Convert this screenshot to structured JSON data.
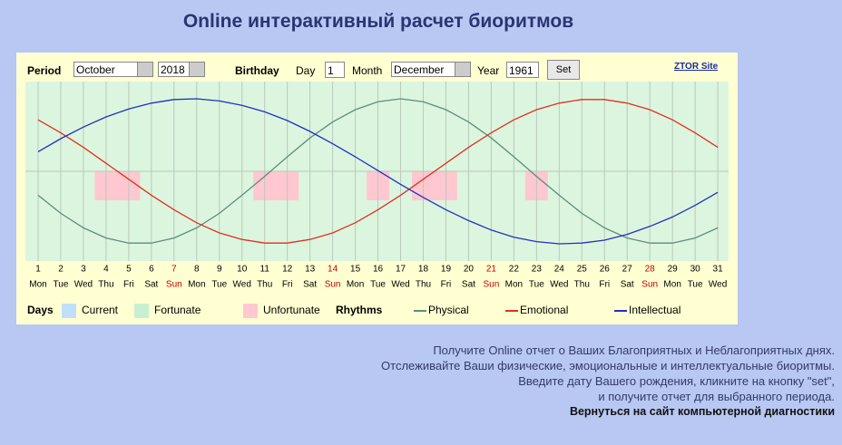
{
  "header": {
    "title": "Online интерактивный расчет биоритмов"
  },
  "form": {
    "period_label": "Period",
    "month": "October",
    "year": "2018",
    "birthday_label": "Birthday",
    "day_label": "Day",
    "day": "1",
    "month_label": "Month",
    "birth_month": "December",
    "year_label": "Year",
    "birth_year": "1961",
    "set_button": "Set",
    "site_link": "ZTOR Site"
  },
  "chart_data": {
    "type": "line",
    "x": [
      1,
      2,
      3,
      4,
      5,
      6,
      7,
      8,
      9,
      10,
      11,
      12,
      13,
      14,
      15,
      16,
      17,
      18,
      19,
      20,
      21,
      22,
      23,
      24,
      25,
      26,
      27,
      28,
      29,
      30,
      31
    ],
    "weekdays": [
      "Mon",
      "Tue",
      "Wed",
      "Thu",
      "Fri",
      "Sat",
      "Sun",
      "Mon",
      "Tue",
      "Wed",
      "Thu",
      "Fri",
      "Sat",
      "Sun",
      "Mon",
      "Tue",
      "Wed",
      "Thu",
      "Fri",
      "Sat",
      "Sun",
      "Mon",
      "Tue",
      "Wed",
      "Thu",
      "Fri",
      "Sat",
      "Sun",
      "Mon",
      "Tue",
      "Wed"
    ],
    "highlight_days": [
      7,
      14,
      21,
      28
    ],
    "highlight_color": "#c00000",
    "ylim": [
      -1,
      1
    ],
    "unfortunate_days": [
      4,
      5,
      11,
      12,
      16,
      18,
      19,
      23
    ],
    "unfortunate_color": "#ffc8d0",
    "background_color": "#dcf5de",
    "series": [
      {
        "name": "Physical",
        "color": "#5f8c7c",
        "values": [
          -0.33,
          -0.58,
          -0.78,
          -0.92,
          -0.99,
          -0.99,
          -0.92,
          -0.78,
          -0.58,
          -0.33,
          -0.07,
          0.2,
          0.46,
          0.68,
          0.85,
          0.96,
          1.0,
          0.96,
          0.85,
          0.68,
          0.46,
          0.2,
          -0.07,
          -0.33,
          -0.58,
          -0.78,
          -0.92,
          -0.99,
          -0.99,
          -0.92,
          -0.78
        ]
      },
      {
        "name": "Emotional",
        "color": "#e03020",
        "values": [
          0.71,
          0.53,
          0.33,
          0.11,
          -0.11,
          -0.33,
          -0.53,
          -0.71,
          -0.85,
          -0.94,
          -0.99,
          -0.99,
          -0.94,
          -0.85,
          -0.71,
          -0.53,
          -0.33,
          -0.11,
          0.11,
          0.33,
          0.53,
          0.71,
          0.85,
          0.94,
          0.99,
          0.99,
          0.94,
          0.85,
          0.71,
          0.53,
          0.33
        ]
      },
      {
        "name": "Intellectual",
        "color": "#2030c0",
        "values": [
          0.27,
          0.45,
          0.61,
          0.75,
          0.86,
          0.94,
          0.99,
          1.0,
          0.97,
          0.91,
          0.82,
          0.7,
          0.55,
          0.38,
          0.2,
          0.01,
          -0.18,
          -0.36,
          -0.53,
          -0.68,
          -0.81,
          -0.91,
          -0.97,
          -1.0,
          -0.99,
          -0.95,
          -0.87,
          -0.76,
          -0.63,
          -0.47,
          -0.29
        ]
      }
    ],
    "legend": {
      "days_title": "Days",
      "days": [
        {
          "name": "Current",
          "color": "#bfe0f8"
        },
        {
          "name": "Fortunate",
          "color": "#c8f0d0"
        },
        {
          "name": "Unfortunate",
          "color": "#ffc8d0"
        }
      ],
      "rhythms_title": "Rhythms"
    }
  },
  "info": {
    "lines": [
      "Получите Online отчет о Ваших Благоприятных и Неблагоприятных днях.",
      "Отслеживайте Ваши физические, эмоциональные и интеллектуальные биоритмы.",
      "Введите дату Вашего рождения, кликните на кнопку \"set\",",
      "и получите отчет для выбранного периода."
    ],
    "back_link": "Вернуться на сайт компьютерной диагностики"
  }
}
